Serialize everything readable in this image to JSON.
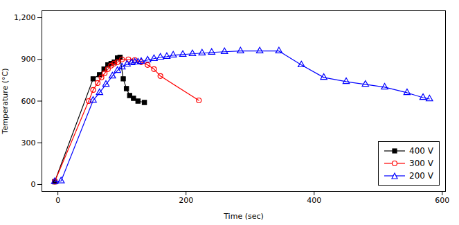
{
  "chart_data": {
    "type": "line",
    "xlabel": "Time (sec)",
    "ylabel": "Temperature (°C)",
    "xlim": [
      -25,
      605
    ],
    "ylim": [
      -50,
      1250
    ],
    "xticks": [
      0,
      200,
      400,
      600
    ],
    "yticks": [
      0,
      300,
      600,
      900,
      1200
    ],
    "grid": false,
    "legend": "lower right",
    "series": [
      {
        "name": "400 V",
        "color": "#000000",
        "marker": "square",
        "x": [
          -5,
          55,
          65,
          72,
          78,
          83,
          88,
          93,
          97,
          102,
          107,
          112,
          118,
          125,
          135
        ],
        "values": [
          20,
          760,
          790,
          830,
          860,
          870,
          880,
          910,
          915,
          760,
          690,
          640,
          620,
          600,
          590
        ]
      },
      {
        "name": "300 V",
        "color": "#ff0000",
        "marker": "circle",
        "x": [
          -5,
          48,
          55,
          62,
          68,
          73,
          78,
          83,
          88,
          93,
          100,
          110,
          120,
          130,
          140,
          150,
          160,
          220
        ],
        "values": [
          20,
          600,
          680,
          730,
          770,
          800,
          830,
          855,
          870,
          880,
          900,
          900,
          895,
          880,
          860,
          830,
          780,
          605
        ]
      },
      {
        "name": "200 V",
        "color": "#0000ff",
        "marker": "triangle",
        "x": [
          -5,
          5,
          55,
          65,
          75,
          85,
          93,
          100,
          108,
          115,
          120,
          125,
          130,
          140,
          150,
          160,
          170,
          180,
          195,
          210,
          225,
          240,
          260,
          285,
          315,
          345,
          380,
          415,
          450,
          480,
          510,
          545,
          570,
          580
        ],
        "values": [
          20,
          25,
          605,
          660,
          720,
          780,
          820,
          845,
          865,
          875,
          880,
          880,
          885,
          895,
          905,
          915,
          920,
          930,
          935,
          940,
          945,
          950,
          955,
          960,
          960,
          960,
          860,
          770,
          740,
          720,
          700,
          660,
          625,
          615
        ]
      }
    ]
  }
}
